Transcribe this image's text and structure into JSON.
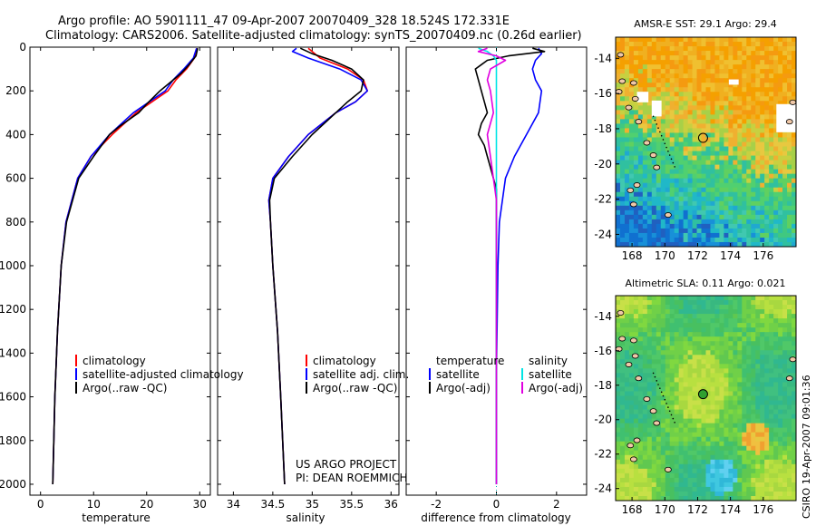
{
  "header": {
    "title_line1": "Argo profile: AO 5901111_47 09-Apr-2007 20070409_328 18.524S 172.331E",
    "title_line2": "Climatology: CARS2006. Satellite-adjusted climatology: synTS_20070409.nc (0.26d earlier)"
  },
  "credit": "CSIRO 19-Apr-2007 09:01:36",
  "colors": {
    "climatology": "#ff0000",
    "satellite": "#0000ff",
    "argo": "#000000",
    "sat_sal": "#00e5e5",
    "argo_sal": "#e000e0",
    "ocean_warm": "#f0a020",
    "ocean_cool": "#30c0a0",
    "land": "#f0c8a8"
  },
  "chart_data": [
    {
      "type": "line",
      "id": "temperature",
      "xlabel": "temperature",
      "ylabel": "",
      "xlim": [
        -2,
        32
      ],
      "ylim": [
        2050,
        0
      ],
      "xticks": [
        "0",
        "10",
        "20",
        "30"
      ],
      "yticks": [
        "0",
        "200",
        "400",
        "600",
        "800",
        "1000",
        "1200",
        "1400",
        "1600",
        "1800",
        "2000"
      ],
      "legend": [
        "climatology",
        "satellite-adjusted climatology",
        "Argo(..raw -QC)"
      ],
      "series": [
        {
          "name": "climatology",
          "depth": [
            5,
            50,
            100,
            150,
            200,
            300,
            400,
            500,
            600,
            800,
            1000,
            1300,
            1600,
            2000
          ],
          "values": [
            29.5,
            29,
            27.5,
            25.5,
            24,
            18,
            13.5,
            9.5,
            7,
            4.8,
            3.9,
            3.2,
            2.7,
            2.3
          ]
        },
        {
          "name": "satellite-adjusted climatology",
          "depth": [
            5,
            50,
            100,
            150,
            200,
            300,
            400,
            500,
            600,
            800,
            1000,
            1300,
            1600,
            2000
          ],
          "values": [
            29.4,
            28.8,
            27,
            25,
            23.5,
            17.5,
            13,
            9.5,
            7,
            4.8,
            3.9,
            3.2,
            2.7,
            2.3
          ]
        },
        {
          "name": "Argo(..raw -QC)",
          "depth": [
            5,
            40,
            80,
            120,
            160,
            200,
            260,
            300,
            360,
            400,
            500,
            600,
            800,
            1000,
            1300,
            1600,
            2000
          ],
          "values": [
            29.6,
            29.3,
            28,
            26.5,
            24.5,
            22.5,
            20,
            18.5,
            15,
            13,
            10,
            7.2,
            4.9,
            3.9,
            3.2,
            2.7,
            2.3
          ]
        }
      ]
    },
    {
      "type": "line",
      "id": "salinity",
      "xlabel": "salinity",
      "ylabel": "",
      "xlim": [
        33.8,
        36.1
      ],
      "ylim": [
        2050,
        0
      ],
      "xticks": [
        "34",
        "34.5",
        "35",
        "35.5",
        "36"
      ],
      "legend": [
        "climatology",
        "satellite adj. clim.",
        "Argo(..raw -QC)"
      ],
      "annotation": [
        "US ARGO PROJECT",
        "PI: DEAN ROEMMICH"
      ],
      "series": [
        {
          "name": "climatology",
          "depth": [
            5,
            50,
            100,
            150,
            200,
            250,
            300,
            400,
            500,
            600,
            700,
            800,
            1000,
            1300,
            1600,
            2000
          ],
          "values": [
            34.95,
            35.1,
            35.45,
            35.65,
            35.7,
            35.55,
            35.3,
            34.95,
            34.7,
            34.5,
            34.45,
            34.47,
            34.5,
            34.56,
            34.6,
            34.65
          ]
        },
        {
          "name": "satellite adj. clim.",
          "depth": [
            5,
            20,
            50,
            100,
            150,
            200,
            250,
            300,
            400,
            500,
            600,
            700,
            800,
            1000,
            1300,
            1600,
            2000
          ],
          "values": [
            34.8,
            34.75,
            34.95,
            35.35,
            35.62,
            35.7,
            35.55,
            35.3,
            34.95,
            34.7,
            34.5,
            34.45,
            34.47,
            34.5,
            34.56,
            34.6,
            34.65
          ]
        },
        {
          "name": "Argo(..raw -QC)",
          "depth": [
            5,
            30,
            60,
            100,
            150,
            200,
            250,
            300,
            400,
            500,
            600,
            700,
            800,
            1000,
            1300,
            1600,
            2000
          ],
          "values": [
            34.85,
            35,
            35.25,
            35.5,
            35.65,
            35.62,
            35.45,
            35.3,
            35,
            34.75,
            34.52,
            34.46,
            34.47,
            34.5,
            34.56,
            34.6,
            34.65
          ]
        }
      ]
    },
    {
      "type": "line",
      "id": "difference",
      "xlabel": "difference from climatology",
      "ylabel": "",
      "xlim": [
        -3,
        3
      ],
      "ylim": [
        2050,
        0
      ],
      "xticks": [
        "-2",
        "0",
        "2"
      ],
      "legend_temperature": [
        "temperature",
        "satellite",
        "Argo(-adj)"
      ],
      "legend_salinity": [
        "salinity",
        "satellite",
        "Argo(-adj)"
      ],
      "series": [
        {
          "name": "temperature satellite",
          "depth": [
            5,
            30,
            60,
            100,
            150,
            200,
            300,
            400,
            500,
            600,
            800,
            1000,
            1500,
            2000
          ],
          "values": [
            1.4,
            1.5,
            1.3,
            1.2,
            1.3,
            1.5,
            1.4,
            1.0,
            0.6,
            0.3,
            0.1,
            0.05,
            0,
            0
          ]
        },
        {
          "name": "temperature Argo(-adj)",
          "depth": [
            5,
            20,
            40,
            60,
            80,
            100,
            150,
            200,
            250,
            300,
            350,
            400,
            450,
            500,
            550,
            600,
            650,
            700,
            800,
            1000,
            1500,
            2000
          ],
          "values": [
            1.2,
            1.6,
            0.4,
            -0.3,
            -0.5,
            -0.7,
            -0.6,
            -0.5,
            -0.4,
            -0.3,
            -0.5,
            -0.6,
            -0.4,
            -0.3,
            -0.2,
            -0.1,
            0,
            0,
            0,
            0,
            0,
            0
          ]
        },
        {
          "name": "salinity satellite",
          "depth": [
            5,
            20,
            40,
            60,
            100,
            200,
            400,
            800,
            1000,
            1500,
            2000
          ],
          "values": [
            -0.6,
            -0.3,
            -0.1,
            0,
            0,
            0,
            0,
            0,
            0,
            0,
            0
          ]
        },
        {
          "name": "salinity Argo(-adj)",
          "depth": [
            5,
            20,
            40,
            60,
            100,
            150,
            200,
            300,
            400,
            500,
            600,
            700,
            800,
            1000,
            1500,
            2000
          ],
          "values": [
            -0.3,
            -0.6,
            0,
            0.3,
            -0.2,
            -0.3,
            -0.2,
            -0.1,
            -0.3,
            -0.2,
            -0.1,
            0,
            0,
            0,
            0,
            0
          ]
        }
      ]
    },
    {
      "type": "heatmap",
      "id": "sst_map",
      "title": "AMSR-E SST: 29.1 Argo: 29.4",
      "xticks": [
        "168",
        "170",
        "172",
        "174",
        "176"
      ],
      "yticks": [
        "-14",
        "-16",
        "-18",
        "-20",
        "-22",
        "-24"
      ],
      "xlim": [
        167,
        178
      ],
      "ylim": [
        -24.7,
        -12.8
      ],
      "marker": {
        "lon": 172.33,
        "lat": -18.52
      }
    },
    {
      "type": "heatmap",
      "id": "sla_map",
      "title": "Altimetric SLA: 0.11 Argo: 0.021",
      "xticks": [
        "168",
        "170",
        "172",
        "174",
        "176"
      ],
      "yticks": [
        "-14",
        "-16",
        "-18",
        "-20",
        "-22",
        "-24"
      ],
      "xlim": [
        167,
        178
      ],
      "ylim": [
        -24.7,
        -12.8
      ],
      "marker": {
        "lon": 172.33,
        "lat": -18.52
      }
    }
  ]
}
